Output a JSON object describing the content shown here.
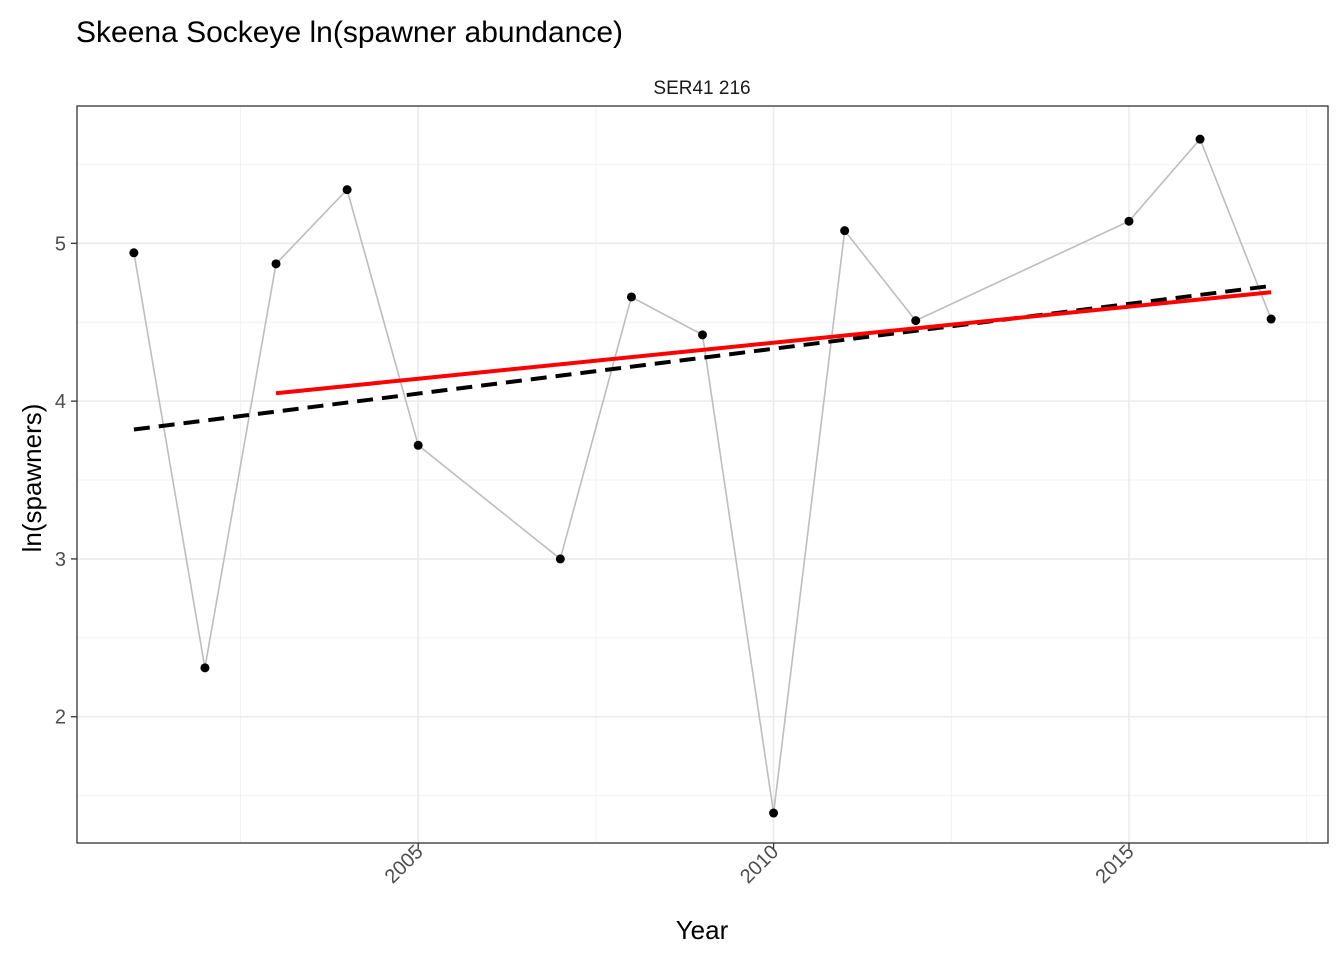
{
  "title": "Skeena Sockeye ln(spawner abundance)",
  "chart_data": {
    "type": "line",
    "title": "Skeena Sockeye ln(spawner abundance)",
    "facet_label": "SER41 216",
    "xlabel": "Year",
    "ylabel": "ln(spawners)",
    "xlim": [
      2000.2,
      2017.8
    ],
    "ylim": [
      1.2,
      5.87
    ],
    "x_ticks": [
      2005,
      2010,
      2015
    ],
    "x_tick_labels": [
      "2005",
      "2010",
      "2015"
    ],
    "y_ticks": [
      2,
      3,
      4,
      5
    ],
    "y_tick_labels": [
      "2",
      "3",
      "4",
      "5"
    ],
    "grid": true,
    "series": [
      {
        "style": "points-connected",
        "color": "#bdbdbd",
        "point_color": "#000000",
        "x": [
          2001,
          2002,
          2003,
          2004,
          2005,
          2007,
          2008,
          2009,
          2010,
          2011,
          2012,
          2015,
          2016,
          2017
        ],
        "y": [
          4.94,
          2.31,
          4.87,
          5.34,
          3.72,
          3.0,
          4.66,
          4.42,
          1.39,
          5.08,
          4.51,
          5.14,
          5.66,
          4.52
        ]
      },
      {
        "style": "dashed-trend",
        "color": "#000000",
        "x": [
          2001,
          2017
        ],
        "y": [
          3.82,
          4.73
        ]
      },
      {
        "style": "solid-trend",
        "color": "#ff0000",
        "x": [
          2003,
          2017
        ],
        "y": [
          4.05,
          4.69
        ]
      }
    ]
  }
}
